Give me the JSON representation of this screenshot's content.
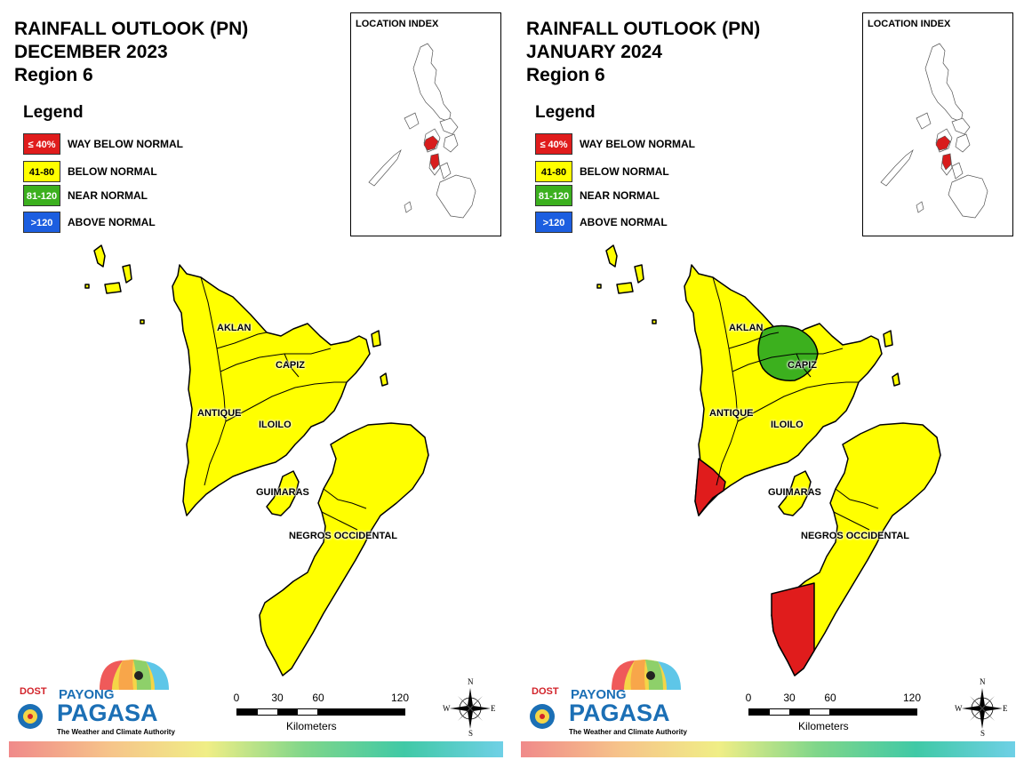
{
  "panels": [
    {
      "title_line1": "RAINFALL OUTLOOK (PN)",
      "title_line2": "DECEMBER 2023",
      "title_line3": "Region 6",
      "legend": {
        "title": "Legend",
        "items": [
          {
            "code": "≤ 40%",
            "label": "WAY BELOW NORMAL",
            "color": "#e01c1c",
            "text_color": "#ffffff"
          },
          {
            "code": "41-80",
            "label": "BELOW NORMAL",
            "color": "#ffff00",
            "text_color": "#000000"
          },
          {
            "code": "81-120",
            "label": "NEAR NORMAL",
            "color": "#3cb01e",
            "text_color": "#ffffff"
          },
          {
            "code": ">120",
            "label": "ABOVE NORMAL",
            "color": "#1c5ee0",
            "text_color": "#ffffff"
          }
        ]
      },
      "location_index": "LOCATION INDEX",
      "provinces": {
        "aklan": "AKLAN",
        "capiz": "CAPIZ",
        "antique": "ANTIQUE",
        "iloilo": "ILOILO",
        "guimaras": "GUIMARAS",
        "negros": "NEGROS OCCIDENTAL"
      },
      "province_categories": {
        "aklan": "BELOW NORMAL",
        "capiz": "BELOW NORMAL",
        "antique": "BELOW NORMAL",
        "iloilo": "BELOW NORMAL",
        "guimaras": "BELOW NORMAL",
        "negros": "BELOW NORMAL"
      },
      "special_zones": [],
      "scale": {
        "ticks": [
          "0",
          "30",
          "60",
          "120"
        ],
        "unit": "Kilometers"
      },
      "compass": {
        "n": "N",
        "s": "S",
        "e": "E",
        "w": "W"
      },
      "logo": {
        "dost": "DOST",
        "payong": "PAYONG",
        "pagasa": "PAGASA",
        "tagline": "The Weather and Climate Authority"
      }
    },
    {
      "title_line1": "RAINFALL OUTLOOK (PN)",
      "title_line2": "JANUARY 2024",
      "title_line3": "Region 6",
      "legend": {
        "title": "Legend",
        "items": [
          {
            "code": "≤ 40%",
            "label": "WAY BELOW NORMAL",
            "color": "#e01c1c",
            "text_color": "#ffffff"
          },
          {
            "code": "41-80",
            "label": "BELOW NORMAL",
            "color": "#ffff00",
            "text_color": "#000000"
          },
          {
            "code": "81-120",
            "label": "NEAR NORMAL",
            "color": "#3cb01e",
            "text_color": "#ffffff"
          },
          {
            "code": ">120",
            "label": "ABOVE NORMAL",
            "color": "#1c5ee0",
            "text_color": "#ffffff"
          }
        ]
      },
      "location_index": "LOCATION INDEX",
      "provinces": {
        "aklan": "AKLAN",
        "capiz": "CAPIZ",
        "antique": "ANTIQUE",
        "iloilo": "ILOILO",
        "guimaras": "GUIMARAS",
        "negros": "NEGROS OCCIDENTAL"
      },
      "province_categories": {
        "aklan": "BELOW NORMAL",
        "capiz": "BELOW NORMAL",
        "antique": "BELOW NORMAL",
        "iloilo": "BELOW NORMAL",
        "guimaras": "BELOW NORMAL",
        "negros": "BELOW NORMAL"
      },
      "special_zones": [
        {
          "area": "Aklan-Capiz",
          "category": "NEAR NORMAL"
        },
        {
          "area": "Southern Antique",
          "category": "WAY BELOW NORMAL"
        },
        {
          "area": "Southern Negros Occidental",
          "category": "WAY BELOW NORMAL"
        }
      ],
      "scale": {
        "ticks": [
          "0",
          "30",
          "60",
          "120"
        ],
        "unit": "Kilometers"
      },
      "compass": {
        "n": "N",
        "s": "S",
        "e": "E",
        "w": "W"
      },
      "logo": {
        "dost": "DOST",
        "payong": "PAYONG",
        "pagasa": "PAGASA",
        "tagline": "The Weather and Climate Authority"
      }
    }
  ]
}
